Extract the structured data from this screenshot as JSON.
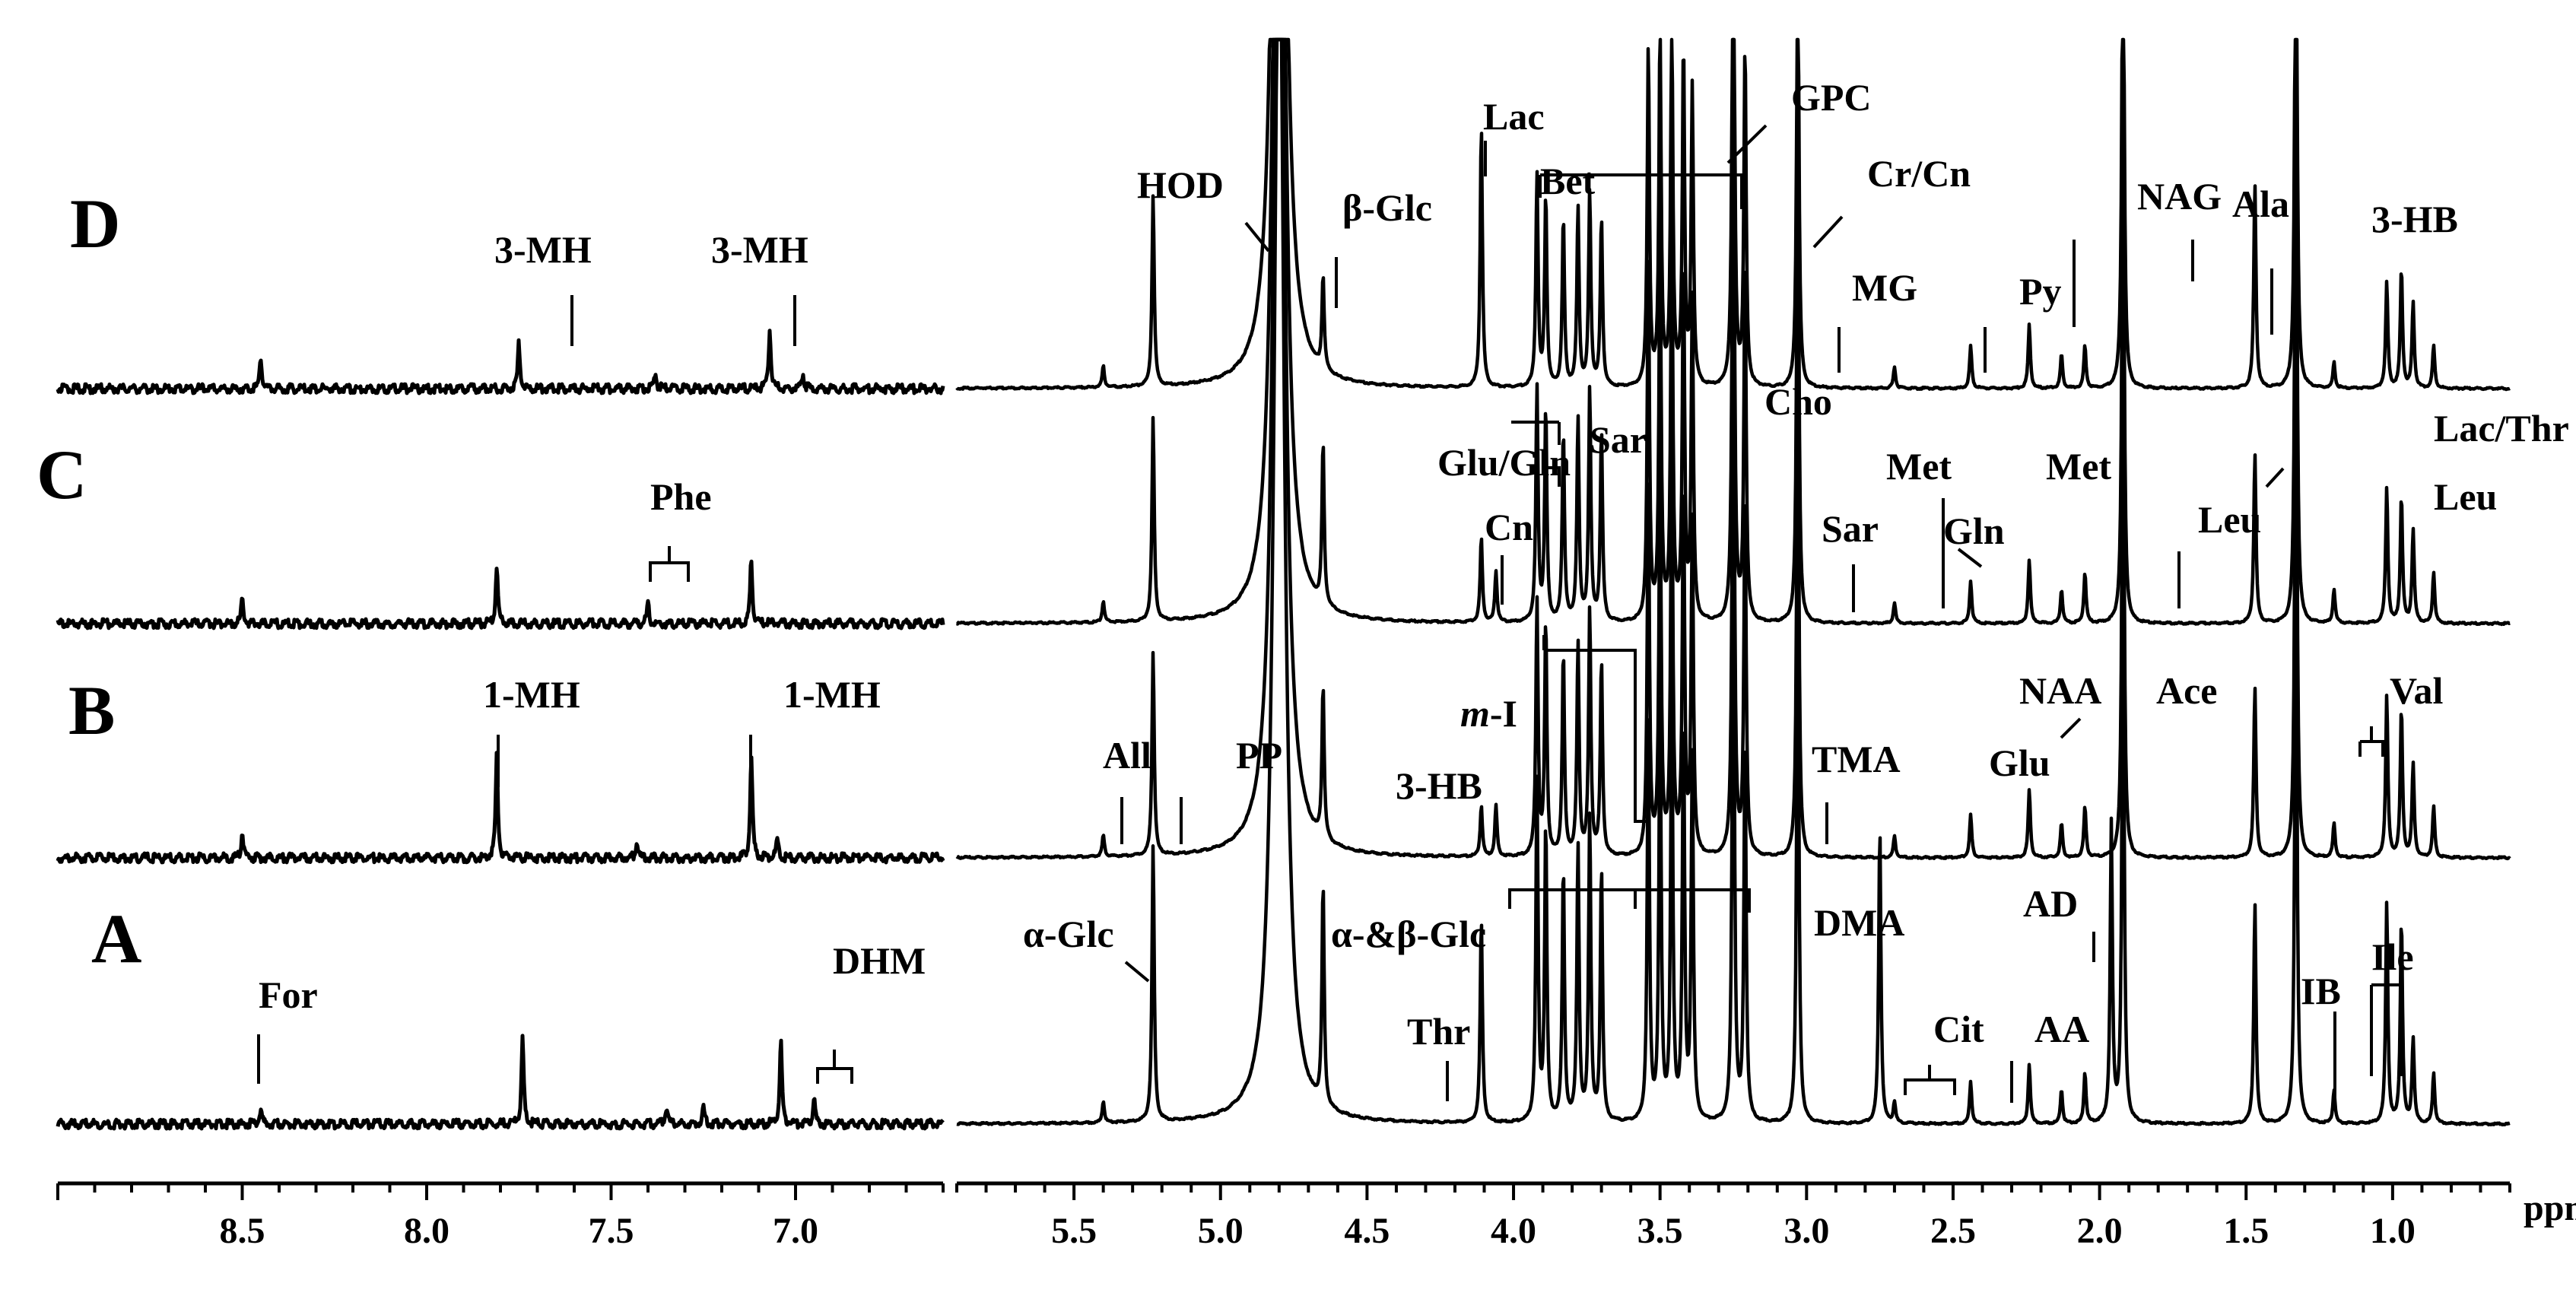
{
  "chart_data": {
    "type": "line",
    "title": "",
    "xlabel": "ppm",
    "ylabel": "",
    "x_axis_reversed": true,
    "grid": false,
    "segments": [
      {
        "name": "aromatic",
        "xlim": [
          9.0,
          6.6
        ],
        "ticks": [
          "8.5",
          "8.0",
          "7.5",
          "7.0"
        ],
        "tick_values": [
          8.5,
          8.0,
          7.5,
          7.0
        ]
      },
      {
        "name": "aliphatic",
        "xlim": [
          5.9,
          0.6
        ],
        "ticks": [
          "5.5",
          "5.0",
          "4.5",
          "4.0",
          "3.5",
          "3.0",
          "2.5",
          "2.0",
          "1.5",
          "1.0"
        ],
        "tick_values": [
          5.5,
          5.0,
          4.5,
          4.0,
          3.5,
          3.0,
          2.5,
          2.0,
          1.5,
          1.0
        ]
      }
    ],
    "spectra": [
      {
        "panel": "D",
        "aromatic_peaks": [
          [
            8.45,
            0.1
          ],
          [
            7.75,
            0.14
          ],
          [
            7.38,
            0.05
          ],
          [
            7.07,
            0.18
          ],
          [
            6.98,
            0.05
          ]
        ],
        "aliphatic_peaks": [
          [
            5.4,
            0.05
          ],
          [
            5.23,
            0.45
          ],
          [
            4.8,
            3.0
          ],
          [
            4.65,
            0.22
          ],
          [
            4.11,
            0.62
          ],
          [
            3.92,
            0.5
          ],
          [
            3.89,
            0.45
          ],
          [
            3.83,
            0.4
          ],
          [
            3.78,
            0.42
          ],
          [
            3.74,
            0.46
          ],
          [
            3.7,
            0.4
          ],
          [
            3.54,
            0.8
          ],
          [
            3.5,
            0.85
          ],
          [
            3.46,
            0.88
          ],
          [
            3.42,
            0.8
          ],
          [
            3.39,
            0.7
          ],
          [
            3.25,
            1.4
          ],
          [
            3.21,
            0.8
          ],
          [
            3.03,
            1.1
          ],
          [
            2.7,
            0.05
          ],
          [
            2.44,
            0.1
          ],
          [
            2.24,
            0.15
          ],
          [
            2.13,
            0.08
          ],
          [
            2.05,
            0.1
          ],
          [
            1.92,
            1.3
          ],
          [
            1.47,
            0.48
          ],
          [
            1.33,
            1.4
          ],
          [
            1.2,
            0.06
          ],
          [
            1.02,
            0.25
          ],
          [
            0.97,
            0.28
          ],
          [
            0.93,
            0.2
          ],
          [
            0.86,
            0.1
          ]
        ]
      },
      {
        "panel": "C",
        "aromatic_peaks": [
          [
            8.5,
            0.08
          ],
          [
            7.81,
            0.18
          ],
          [
            7.4,
            0.06
          ],
          [
            7.12,
            0.2
          ]
        ],
        "aliphatic_peaks": [
          [
            5.4,
            0.05
          ],
          [
            5.23,
            0.48
          ],
          [
            4.8,
            3.0
          ],
          [
            4.65,
            0.38
          ],
          [
            4.11,
            0.2
          ],
          [
            4.06,
            0.12
          ],
          [
            3.92,
            0.55
          ],
          [
            3.89,
            0.5
          ],
          [
            3.83,
            0.45
          ],
          [
            3.78,
            0.48
          ],
          [
            3.74,
            0.55
          ],
          [
            3.7,
            0.45
          ],
          [
            3.54,
            0.85
          ],
          [
            3.5,
            0.9
          ],
          [
            3.46,
            0.92
          ],
          [
            3.42,
            0.85
          ],
          [
            3.39,
            0.75
          ],
          [
            3.25,
            1.4
          ],
          [
            3.21,
            0.85
          ],
          [
            3.03,
            1.2
          ],
          [
            2.7,
            0.05
          ],
          [
            2.44,
            0.1
          ],
          [
            2.24,
            0.15
          ],
          [
            2.13,
            0.08
          ],
          [
            2.05,
            0.12
          ],
          [
            1.92,
            1.3
          ],
          [
            1.47,
            0.4
          ],
          [
            1.33,
            1.4
          ],
          [
            1.2,
            0.08
          ],
          [
            1.02,
            0.32
          ],
          [
            0.97,
            0.3
          ],
          [
            0.93,
            0.22
          ],
          [
            0.86,
            0.12
          ]
        ]
      },
      {
        "panel": "B",
        "aromatic_peaks": [
          [
            8.5,
            0.08
          ],
          [
            7.81,
            0.32
          ],
          [
            7.43,
            0.05
          ],
          [
            7.12,
            0.32
          ],
          [
            7.05,
            0.06
          ]
        ],
        "aliphatic_peaks": [
          [
            5.4,
            0.05
          ],
          [
            5.23,
            0.48
          ],
          [
            4.8,
            3.0
          ],
          [
            4.65,
            0.36
          ],
          [
            4.11,
            0.12
          ],
          [
            4.06,
            0.12
          ],
          [
            3.92,
            0.6
          ],
          [
            3.89,
            0.55
          ],
          [
            3.83,
            0.48
          ],
          [
            3.78,
            0.5
          ],
          [
            3.74,
            0.58
          ],
          [
            3.7,
            0.46
          ],
          [
            3.54,
            0.88
          ],
          [
            3.5,
            0.92
          ],
          [
            3.46,
            0.95
          ],
          [
            3.42,
            0.88
          ],
          [
            3.39,
            0.78
          ],
          [
            3.25,
            1.4
          ],
          [
            3.21,
            0.85
          ],
          [
            3.03,
            1.2
          ],
          [
            2.7,
            0.05
          ],
          [
            2.44,
            0.1
          ],
          [
            2.24,
            0.16
          ],
          [
            2.13,
            0.08
          ],
          [
            2.05,
            0.12
          ],
          [
            1.92,
            1.3
          ],
          [
            1.47,
            0.4
          ],
          [
            1.33,
            1.4
          ],
          [
            1.2,
            0.08
          ],
          [
            1.02,
            0.38
          ],
          [
            0.97,
            0.35
          ],
          [
            0.93,
            0.22
          ],
          [
            0.86,
            0.12
          ]
        ]
      },
      {
        "panel": "A",
        "aromatic_peaks": [
          [
            8.45,
            0.05
          ],
          [
            7.74,
            0.26
          ],
          [
            7.35,
            0.05
          ],
          [
            7.25,
            0.05
          ],
          [
            7.04,
            0.26
          ],
          [
            6.95,
            0.08
          ]
        ],
        "aliphatic_peaks": [
          [
            5.4,
            0.05
          ],
          [
            5.23,
            0.65
          ],
          [
            4.8,
            3.0
          ],
          [
            4.65,
            0.52
          ],
          [
            4.11,
            0.48
          ],
          [
            3.92,
            0.8
          ],
          [
            3.89,
            0.7
          ],
          [
            3.83,
            0.6
          ],
          [
            3.78,
            0.65
          ],
          [
            3.74,
            0.72
          ],
          [
            3.7,
            0.6
          ],
          [
            3.54,
            0.95
          ],
          [
            3.5,
            1.0
          ],
          [
            3.46,
            1.0
          ],
          [
            3.42,
            0.95
          ],
          [
            3.39,
            0.85
          ],
          [
            3.25,
            1.4
          ],
          [
            3.21,
            0.9
          ],
          [
            3.03,
            1.3
          ],
          [
            2.75,
            0.7
          ],
          [
            2.7,
            0.05
          ],
          [
            2.44,
            0.1
          ],
          [
            2.24,
            0.14
          ],
          [
            2.13,
            0.08
          ],
          [
            2.05,
            0.12
          ],
          [
            1.96,
            0.7
          ],
          [
            1.92,
            1.3
          ],
          [
            1.47,
            0.52
          ],
          [
            1.33,
            1.4
          ],
          [
            1.2,
            0.08
          ],
          [
            1.02,
            0.52
          ],
          [
            0.97,
            0.48
          ],
          [
            0.93,
            0.2
          ],
          [
            0.86,
            0.12
          ]
        ]
      }
    ],
    "panels": {
      "D": {
        "label": "D",
        "annotations": [
          "3-MH",
          "3-MH",
          "HOD",
          "β-Glc",
          "Lac",
          "Bet",
          "GPC",
          "Cr/Cn",
          "MG",
          "Py",
          "NAG",
          "Ala",
          "3-HB"
        ]
      },
      "C": {
        "label": "C",
        "annotations": [
          "Phe",
          "Glu/Gln",
          "Sar",
          "Cn",
          "Cho",
          "Met",
          "Sar",
          "Met",
          "Gln",
          "Leu",
          "Lac/Thr",
          "Leu"
        ]
      },
      "B": {
        "label": "B",
        "annotations": [
          "1-MH",
          "1-MH",
          "All",
          "PP",
          "m-I",
          "3-HB",
          "TMA",
          "NAA",
          "Ace",
          "Glu",
          "Val"
        ]
      },
      "A": {
        "label": "A",
        "annotations": [
          "For",
          "DHM",
          "α-Glc",
          "α-&β-Glc",
          "Thr",
          "DMA",
          "Cit",
          "AA",
          "AD",
          "IB",
          "Ile"
        ]
      }
    }
  }
}
